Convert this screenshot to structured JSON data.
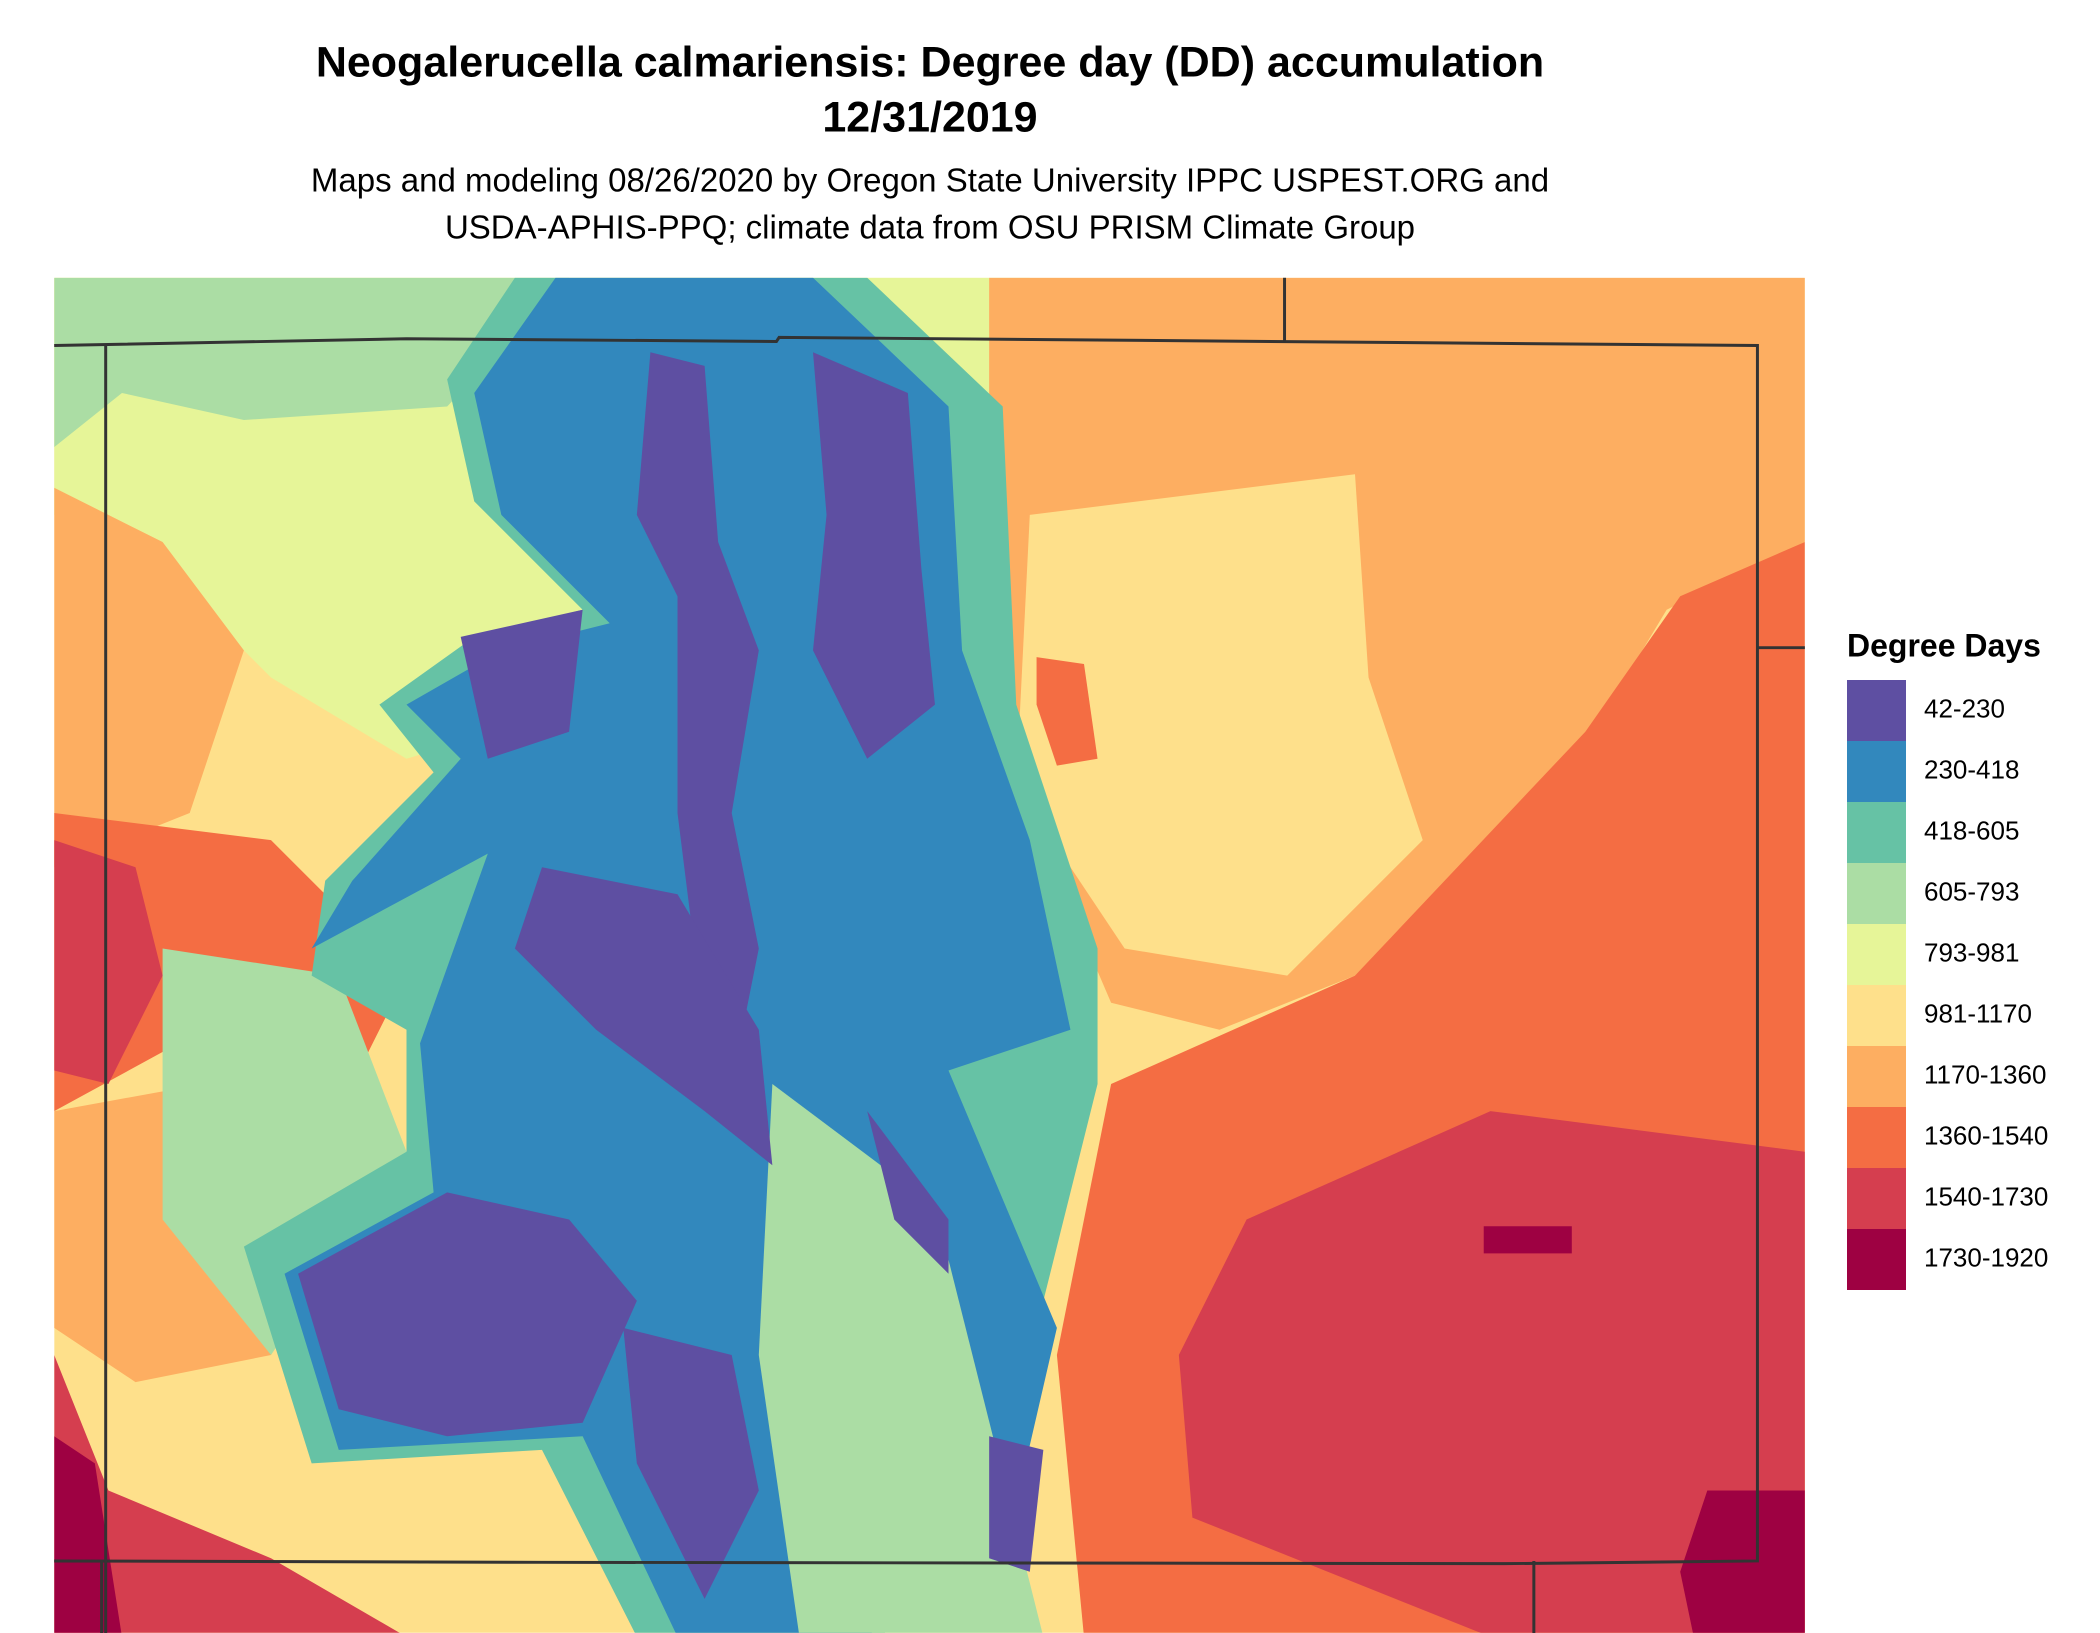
{
  "title": {
    "line1": "Neogalerucella calmariensis: Degree day (DD) accumulation",
    "line2": "12/31/2019"
  },
  "subtitle": {
    "line1": "Maps and modeling 08/26/2020 by Oregon State University IPPC USPEST.ORG and",
    "line2": "USDA-APHIS-PPQ; climate data from OSU PRISM Climate Group"
  },
  "legend": {
    "title": "Degree Days",
    "items": [
      {
        "label": "42-230",
        "color": "#5e4fa2"
      },
      {
        "label": "230-418",
        "color": "#3288bd"
      },
      {
        "label": "418-605",
        "color": "#66c2a5"
      },
      {
        "label": "605-793",
        "color": "#abdda4"
      },
      {
        "label": "793-981",
        "color": "#e6f598"
      },
      {
        "label": "981-1170",
        "color": "#fee08b"
      },
      {
        "label": "1170-1360",
        "color": "#fdae61"
      },
      {
        "label": "1360-1540",
        "color": "#f46d43"
      },
      {
        "label": "1540-1730",
        "color": "#d53e4f"
      },
      {
        "label": "1730-1920",
        "color": "#9e0142"
      }
    ]
  }
}
